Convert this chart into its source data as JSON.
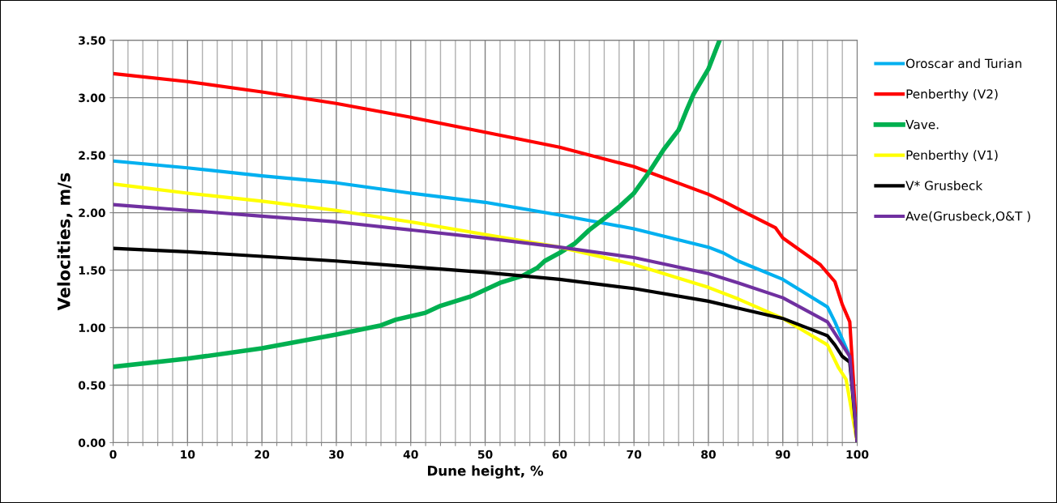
{
  "chart_data": {
    "type": "line",
    "xlabel": "Dune height, %",
    "ylabel": "Velocities, m/s",
    "xlim": [
      0,
      100
    ],
    "ylim": [
      0,
      3.5
    ],
    "xticks": [
      0,
      {
        "value": 2,
        "label": null
      },
      {
        "value": 4,
        "label": null
      },
      {
        "value": 6,
        "label": null
      },
      {
        "value": 8,
        "label": null
      },
      10,
      {
        "value": 12,
        "label": null
      },
      {
        "value": 14,
        "label": null
      },
      {
        "value": 16,
        "label": null
      },
      {
        "value": 18,
        "label": null
      },
      20,
      {
        "value": 22,
        "label": null
      },
      {
        "value": 24,
        "label": null
      },
      {
        "value": 26,
        "label": null
      },
      {
        "value": 28,
        "label": null
      },
      30,
      {
        "value": 32,
        "label": null
      },
      {
        "value": 34,
        "label": null
      },
      {
        "value": 36,
        "label": null
      },
      {
        "value": 38,
        "label": null
      },
      40,
      {
        "value": 42,
        "label": null
      },
      {
        "value": 44,
        "label": null
      },
      {
        "value": 46,
        "label": null
      },
      {
        "value": 48,
        "label": null
      },
      50,
      {
        "value": 52,
        "label": null
      },
      {
        "value": 54,
        "label": null
      },
      {
        "value": 56,
        "label": null
      },
      {
        "value": 58,
        "label": null
      },
      60,
      {
        "value": 62,
        "label": null
      },
      {
        "value": 64,
        "label": null
      },
      {
        "value": 66,
        "label": null
      },
      {
        "value": 68,
        "label": null
      },
      70,
      {
        "value": 72,
        "label": null
      },
      {
        "value": 74,
        "label": null
      },
      {
        "value": 76,
        "label": null
      },
      {
        "value": 78,
        "label": null
      },
      80,
      {
        "value": 82,
        "label": null
      },
      {
        "value": 84,
        "label": null
      },
      {
        "value": 86,
        "label": null
      },
      {
        "value": 88,
        "label": null
      },
      90,
      {
        "value": 92,
        "label": null
      },
      {
        "value": 94,
        "label": null
      },
      {
        "value": 96,
        "label": null
      },
      {
        "value": 98,
        "label": null
      },
      100
    ],
    "yticks": [
      {
        "value": 0,
        "label": "0.00"
      },
      {
        "value": 0.5,
        "label": "0.50"
      },
      {
        "value": 1,
        "label": "1.00"
      },
      {
        "value": 1.5,
        "label": "1.50"
      },
      {
        "value": 2,
        "label": "2.00"
      },
      {
        "value": 2.5,
        "label": "2.50"
      },
      {
        "value": 3,
        "label": "3.00"
      },
      {
        "value": 3.5,
        "label": "3.50"
      }
    ],
    "grid": true,
    "legend": "right",
    "marker": "none",
    "line_style": "solid",
    "series": [
      {
        "name": "Oroscar and Turian",
        "color": "#00b0f0",
        "x": [
          0,
          10,
          20,
          30,
          40,
          50,
          60,
          65,
          70,
          80,
          82,
          84,
          90,
          96,
          97,
          98,
          99,
          100
        ],
        "values": [
          2.45,
          2.39,
          2.32,
          2.26,
          2.17,
          2.09,
          1.98,
          1.92,
          1.86,
          1.7,
          1.65,
          1.58,
          1.42,
          1.18,
          1.05,
          0.9,
          0.75,
          0
        ]
      },
      {
        "name": "Penberthy (V2)",
        "color": "#ff0000",
        "x": [
          0,
          10,
          20,
          30,
          40,
          50,
          60,
          70,
          80,
          82,
          85,
          89,
          90,
          95,
          97,
          98,
          99,
          100
        ],
        "values": [
          3.21,
          3.14,
          3.05,
          2.95,
          2.83,
          2.7,
          2.57,
          2.4,
          2.16,
          2.1,
          2.0,
          1.87,
          1.78,
          1.55,
          1.4,
          1.2,
          1.05,
          0
        ]
      },
      {
        "name": "Vave.",
        "color": "#00b050",
        "x": [
          0,
          10,
          20,
          30,
          36,
          38,
          42,
          44,
          48,
          50,
          52,
          55,
          57,
          58,
          60,
          62,
          64,
          66,
          68,
          70,
          72,
          74,
          76,
          77,
          78,
          80,
          81.5
        ],
        "values": [
          0.66,
          0.73,
          0.82,
          0.94,
          1.02,
          1.07,
          1.13,
          1.19,
          1.27,
          1.33,
          1.39,
          1.45,
          1.52,
          1.58,
          1.65,
          1.73,
          1.85,
          1.95,
          2.05,
          2.17,
          2.35,
          2.55,
          2.72,
          2.88,
          3.03,
          3.25,
          3.5
        ]
      },
      {
        "name": "Penberthy (V1)",
        "color": "#ffff00",
        "x": [
          0,
          10,
          20,
          30,
          40,
          50,
          60,
          70,
          80,
          84,
          90,
          96,
          97.5,
          98.5,
          100
        ],
        "values": [
          2.25,
          2.17,
          2.1,
          2.02,
          1.92,
          1.81,
          1.7,
          1.55,
          1.35,
          1.25,
          1.08,
          0.85,
          0.65,
          0.55,
          0
        ]
      },
      {
        "name": "V* Grusbeck",
        "color": "#000000",
        "x": [
          0,
          10,
          20,
          30,
          40,
          50,
          60,
          70,
          80,
          84,
          90,
          96,
          97,
          98,
          99,
          100
        ],
        "values": [
          1.69,
          1.66,
          1.62,
          1.58,
          1.53,
          1.48,
          1.42,
          1.34,
          1.23,
          1.17,
          1.08,
          0.93,
          0.85,
          0.75,
          0.7,
          0
        ]
      },
      {
        "name": "Ave(Grusbeck,O&T )",
        "color": "#7030a0",
        "x": [
          0,
          10,
          20,
          30,
          40,
          50,
          60,
          70,
          80,
          84,
          90,
          96,
          97,
          98,
          99,
          100
        ],
        "values": [
          2.07,
          2.02,
          1.97,
          1.92,
          1.85,
          1.78,
          1.7,
          1.61,
          1.47,
          1.39,
          1.26,
          1.05,
          0.95,
          0.85,
          0.75,
          0
        ]
      }
    ]
  }
}
